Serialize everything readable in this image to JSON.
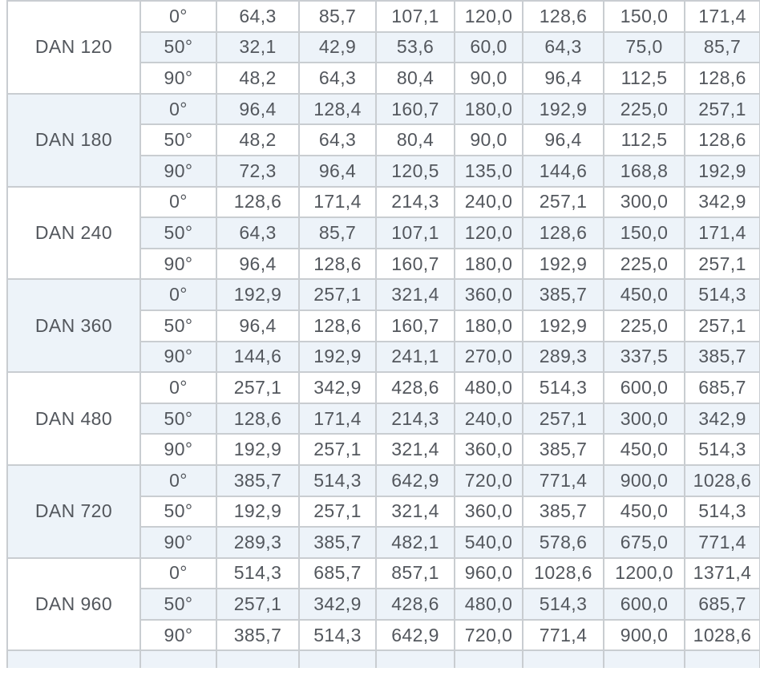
{
  "colors": {
    "background": "#ffffff",
    "stripe": "#edf3f9",
    "border": "#c9cdd1",
    "text": "#53575d"
  },
  "table": {
    "blocks": [
      {
        "name": "DAN 120",
        "rows": [
          {
            "angle": "0°",
            "values": [
              "64,3",
              "85,7",
              "107,1",
              "120,0",
              "128,6",
              "150,0",
              "171,4"
            ]
          },
          {
            "angle": "50°",
            "values": [
              "32,1",
              "42,9",
              "53,6",
              "60,0",
              "64,3",
              "75,0",
              "85,7"
            ]
          },
          {
            "angle": "90°",
            "values": [
              "48,2",
              "64,3",
              "80,4",
              "90,0",
              "96,4",
              "112,5",
              "128,6"
            ]
          }
        ]
      },
      {
        "name": "DAN 180",
        "rows": [
          {
            "angle": "0°",
            "values": [
              "96,4",
              "128,4",
              "160,7",
              "180,0",
              "192,9",
              "225,0",
              "257,1"
            ]
          },
          {
            "angle": "50°",
            "values": [
              "48,2",
              "64,3",
              "80,4",
              "90,0",
              "96,4",
              "112,5",
              "128,6"
            ]
          },
          {
            "angle": "90°",
            "values": [
              "72,3",
              "96,4",
              "120,5",
              "135,0",
              "144,6",
              "168,8",
              "192,9"
            ]
          }
        ]
      },
      {
        "name": "DAN 240",
        "rows": [
          {
            "angle": "0°",
            "values": [
              "128,6",
              "171,4",
              "214,3",
              "240,0",
              "257,1",
              "300,0",
              "342,9"
            ]
          },
          {
            "angle": "50°",
            "values": [
              "64,3",
              "85,7",
              "107,1",
              "120,0",
              "128,6",
              "150,0",
              "171,4"
            ]
          },
          {
            "angle": "90°",
            "values": [
              "96,4",
              "128,6",
              "160,7",
              "180,0",
              "192,9",
              "225,0",
              "257,1"
            ]
          }
        ]
      },
      {
        "name": "DAN 360",
        "rows": [
          {
            "angle": "0°",
            "values": [
              "192,9",
              "257,1",
              "321,4",
              "360,0",
              "385,7",
              "450,0",
              "514,3"
            ]
          },
          {
            "angle": "50°",
            "values": [
              "96,4",
              "128,6",
              "160,7",
              "180,0",
              "192,9",
              "225,0",
              "257,1"
            ]
          },
          {
            "angle": "90°",
            "values": [
              "144,6",
              "192,9",
              "241,1",
              "270,0",
              "289,3",
              "337,5",
              "385,7"
            ]
          }
        ]
      },
      {
        "name": "DAN 480",
        "rows": [
          {
            "angle": "0°",
            "values": [
              "257,1",
              "342,9",
              "428,6",
              "480,0",
              "514,3",
              "600,0",
              "685,7"
            ]
          },
          {
            "angle": "50°",
            "values": [
              "128,6",
              "171,4",
              "214,3",
              "240,0",
              "257,1",
              "300,0",
              "342,9"
            ]
          },
          {
            "angle": "90°",
            "values": [
              "192,9",
              "257,1",
              "321,4",
              "360,0",
              "385,7",
              "450,0",
              "514,3"
            ]
          }
        ]
      },
      {
        "name": "DAN 720",
        "rows": [
          {
            "angle": "0°",
            "values": [
              "385,7",
              "514,3",
              "642,9",
              "720,0",
              "771,4",
              "900,0",
              "1028,6"
            ]
          },
          {
            "angle": "50°",
            "values": [
              "192,9",
              "257,1",
              "321,4",
              "360,0",
              "385,7",
              "450,0",
              "514,3"
            ]
          },
          {
            "angle": "90°",
            "values": [
              "289,3",
              "385,7",
              "482,1",
              "540,0",
              "578,6",
              "675,0",
              "771,4"
            ]
          }
        ]
      },
      {
        "name": "DAN 960",
        "rows": [
          {
            "angle": "0°",
            "values": [
              "514,3",
              "685,7",
              "857,1",
              "960,0",
              "1028,6",
              "1200,0",
              "1371,4"
            ]
          },
          {
            "angle": "50°",
            "values": [
              "257,1",
              "342,9",
              "428,6",
              "480,0",
              "514,3",
              "600,0",
              "685,7"
            ]
          },
          {
            "angle": "90°",
            "values": [
              "385,7",
              "514,3",
              "642,9",
              "720,0",
              "771,4",
              "900,0",
              "1028,6"
            ]
          }
        ]
      }
    ]
  }
}
